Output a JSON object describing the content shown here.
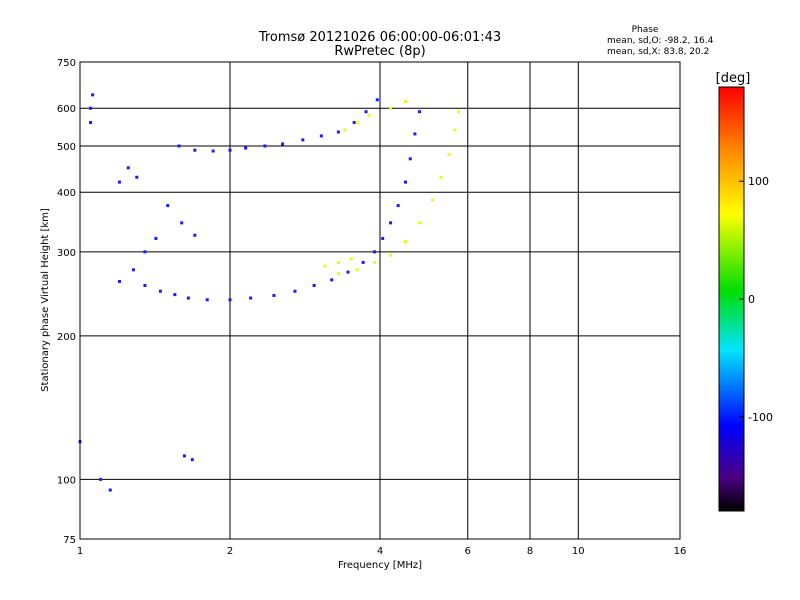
{
  "chart_data": {
    "type": "scatter",
    "title": "Tromsø 20121026 06:00:00-06:01:43",
    "subtitle": "RwPretec (8p)",
    "xlabel": "Frequency [MHz]",
    "ylabel": "Stationary phase Virtual Height [km]",
    "x_scale": "log2",
    "y_scale": "log",
    "xlim": [
      1,
      16
    ],
    "ylim": [
      75,
      750
    ],
    "x_ticks": [
      1,
      2,
      4,
      6,
      8,
      10,
      16
    ],
    "y_ticks": [
      75,
      100,
      200,
      300,
      400,
      500,
      600,
      750
    ],
    "grid": true,
    "phase_header": "Phase",
    "stats": [
      "mean, sd,O: -98.2, 16.4",
      "mean, sd,X:  83.8, 20.2"
    ],
    "colorbar": {
      "label": "[deg]",
      "range": [
        -180,
        180
      ],
      "ticks": [
        -100,
        0,
        100
      ],
      "colormap": "rainbow (black-purple-blue-cyan-green-yellow-red)"
    },
    "series": [
      {
        "name": "O",
        "phase_deg": -100,
        "color": "#1a1aff",
        "traces": [
          [
            [
              1.58,
              500
            ],
            [
              1.7,
              490
            ],
            [
              1.85,
              488
            ],
            [
              2.0,
              490
            ],
            [
              2.15,
              495
            ],
            [
              2.35,
              500
            ],
            [
              2.55,
              505
            ],
            [
              2.8,
              515
            ],
            [
              3.05,
              525
            ],
            [
              3.3,
              535
            ],
            [
              3.55,
              560
            ],
            [
              3.75,
              590
            ],
            [
              3.95,
              625
            ]
          ],
          [
            [
              1.35,
              255
            ],
            [
              1.45,
              248
            ],
            [
              1.55,
              244
            ],
            [
              1.65,
              240
            ],
            [
              1.8,
              238
            ],
            [
              2.0,
              238
            ],
            [
              2.2,
              240
            ],
            [
              2.45,
              243
            ],
            [
              2.7,
              248
            ],
            [
              2.95,
              255
            ],
            [
              3.2,
              262
            ],
            [
              3.45,
              272
            ],
            [
              3.7,
              285
            ],
            [
              3.9,
              300
            ],
            [
              4.05,
              320
            ],
            [
              4.2,
              345
            ],
            [
              4.35,
              375
            ],
            [
              4.5,
              420
            ],
            [
              4.6,
              470
            ],
            [
              4.7,
              530
            ],
            [
              4.8,
              590
            ]
          ],
          [
            [
              1.2,
              260
            ],
            [
              1.28,
              275
            ],
            [
              1.35,
              300
            ],
            [
              1.42,
              320
            ]
          ],
          [
            [
              1.5,
              375
            ],
            [
              1.6,
              345
            ],
            [
              1.7,
              325
            ]
          ],
          [
            [
              1.2,
              420
            ],
            [
              1.25,
              450
            ],
            [
              1.3,
              430
            ]
          ],
          [
            [
              1.05,
              560
            ],
            [
              1.05,
              600
            ],
            [
              1.06,
              640
            ]
          ],
          [
            [
              1.0,
              120
            ],
            [
              1.1,
              100
            ],
            [
              1.15,
              95
            ],
            [
              1.62,
              112
            ],
            [
              1.68,
              110
            ]
          ]
        ]
      },
      {
        "name": "X",
        "phase_deg": 84,
        "color": "#e0ff1a",
        "traces": [
          [
            [
              3.3,
              270
            ],
            [
              3.6,
              275
            ],
            [
              3.9,
              285
            ],
            [
              4.2,
              295
            ],
            [
              4.5,
              315
            ],
            [
              4.8,
              345
            ],
            [
              5.1,
              385
            ],
            [
              5.3,
              430
            ],
            [
              5.5,
              480
            ],
            [
              5.65,
              540
            ],
            [
              5.75,
              590
            ]
          ],
          [
            [
              3.1,
              280
            ],
            [
              3.3,
              285
            ],
            [
              3.5,
              290
            ]
          ],
          [
            [
              3.4,
              540
            ],
            [
              3.6,
              560
            ],
            [
              3.8,
              580
            ],
            [
              4.2,
              600
            ],
            [
              4.5,
              620
            ]
          ]
        ]
      }
    ]
  }
}
